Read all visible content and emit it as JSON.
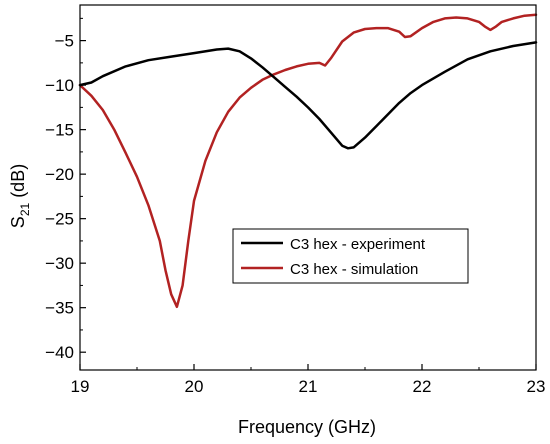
{
  "chart_data": {
    "type": "line",
    "title": "",
    "xlabel": "Frequency (GHz)",
    "ylabel": {
      "main": "S",
      "sub": "21",
      "unit": " (dB)"
    },
    "xlim": [
      19,
      23
    ],
    "ylim": [
      -42,
      -1
    ],
    "xticks": [
      19,
      20,
      21,
      22,
      23
    ],
    "yticks": [
      -5,
      -10,
      -15,
      -20,
      -25,
      -30,
      -35,
      -40
    ],
    "grid": false,
    "legend_position": "center-right",
    "series": [
      {
        "name": "C3 hex - experiment",
        "color": "#000000",
        "x": [
          19.0,
          19.1,
          19.2,
          19.4,
          19.6,
          19.8,
          20.0,
          20.2,
          20.3,
          20.4,
          20.5,
          20.6,
          20.7,
          20.8,
          20.9,
          21.0,
          21.1,
          21.2,
          21.3,
          21.35,
          21.4,
          21.5,
          21.6,
          21.7,
          21.8,
          21.9,
          22.0,
          22.2,
          22.4,
          22.6,
          22.8,
          23.0
        ],
        "y": [
          -10.0,
          -9.7,
          -9.0,
          -7.9,
          -7.2,
          -6.8,
          -6.4,
          -6.0,
          -5.9,
          -6.2,
          -7.0,
          -8.0,
          -9.1,
          -10.2,
          -11.3,
          -12.5,
          -13.8,
          -15.3,
          -16.8,
          -17.1,
          -17.0,
          -15.9,
          -14.6,
          -13.3,
          -12.0,
          -10.9,
          -10.0,
          -8.5,
          -7.1,
          -6.2,
          -5.6,
          -5.2
        ]
      },
      {
        "name": "C3 hex - simulation",
        "color": "#b22222",
        "x": [
          19.0,
          19.1,
          19.2,
          19.3,
          19.4,
          19.5,
          19.6,
          19.7,
          19.75,
          19.8,
          19.85,
          19.9,
          19.95,
          20.0,
          20.1,
          20.2,
          20.3,
          20.4,
          20.5,
          20.6,
          20.7,
          20.8,
          20.9,
          21.0,
          21.1,
          21.15,
          21.2,
          21.3,
          21.4,
          21.5,
          21.6,
          21.7,
          21.8,
          21.85,
          21.9,
          22.0,
          22.1,
          22.2,
          22.3,
          22.4,
          22.5,
          22.55,
          22.6,
          22.65,
          22.7,
          22.8,
          22.9,
          23.0
        ],
        "y": [
          -10.0,
          -11.2,
          -12.8,
          -15.0,
          -17.6,
          -20.3,
          -23.5,
          -27.5,
          -30.8,
          -33.5,
          -34.9,
          -32.5,
          -27.5,
          -23.0,
          -18.5,
          -15.3,
          -13.0,
          -11.4,
          -10.3,
          -9.4,
          -8.8,
          -8.3,
          -7.9,
          -7.6,
          -7.5,
          -7.8,
          -7.0,
          -5.1,
          -4.1,
          -3.7,
          -3.6,
          -3.6,
          -4.0,
          -4.6,
          -4.5,
          -3.6,
          -2.9,
          -2.5,
          -2.4,
          -2.5,
          -2.9,
          -3.4,
          -3.8,
          -3.4,
          -2.9,
          -2.5,
          -2.2,
          -2.1
        ]
      }
    ]
  }
}
